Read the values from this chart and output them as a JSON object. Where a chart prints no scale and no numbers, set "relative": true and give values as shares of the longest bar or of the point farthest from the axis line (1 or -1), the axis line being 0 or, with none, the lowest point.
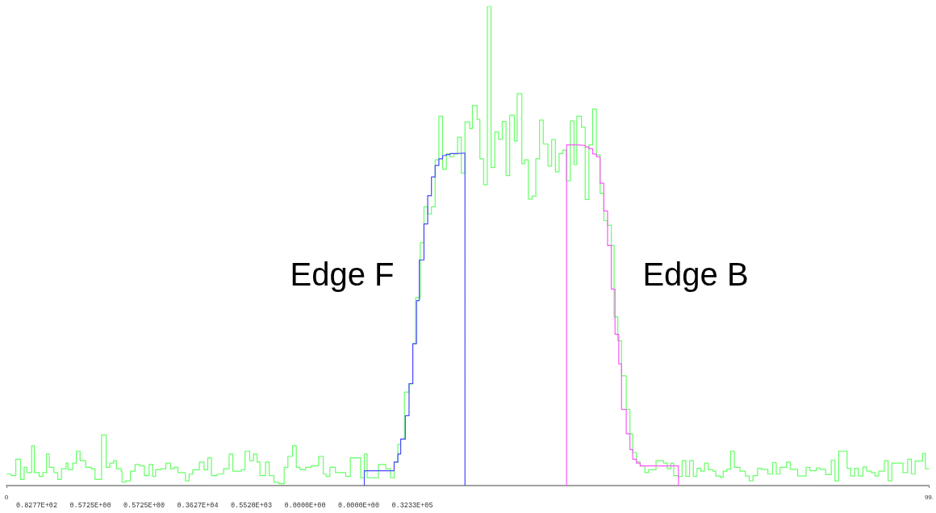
{
  "chart_data": {
    "type": "step",
    "relative": true,
    "tick_labels": "x",
    "xlim": [
      0,
      99
    ],
    "xticks": [
      0,
      {
        "value": 99,
        "label": "99."
      }
    ],
    "series": [
      {
        "color": "#66ff66",
        "x": [
          0.0,
          0.5,
          1.0,
          1.5,
          1.9,
          2.2,
          2.7,
          3.0,
          3.5,
          3.9,
          4.3,
          4.6,
          5.1,
          5.5,
          5.9,
          6.4,
          6.6,
          7.1,
          7.5,
          7.9,
          8.5,
          9.1,
          9.5,
          10.2,
          10.7,
          11.1,
          11.5,
          11.8,
          12.3,
          12.4,
          12.8,
          13.3,
          13.8,
          14.3,
          14.8,
          15.3,
          15.7,
          16.0,
          16.6,
          17.1,
          17.6,
          18.0,
          18.4,
          19.2,
          19.6,
          20.0,
          20.7,
          21.2,
          21.6,
          22.0,
          22.6,
          23.3,
          23.9,
          24.3,
          25.2,
          25.6,
          26.1,
          26.5,
          26.9,
          27.2,
          27.8,
          28.2,
          28.7,
          29.2,
          29.8,
          30.2,
          30.7,
          31.1,
          31.5,
          32.1,
          32.7,
          33.5,
          34.0,
          34.3,
          34.7,
          35.3,
          36.1,
          36.4,
          36.9,
          38.0,
          38.4,
          38.7,
          39.9,
          40.7,
          41.2,
          41.6,
          42.0,
          42.3,
          42.7,
          43.2,
          43.6,
          43.9,
          44.4,
          44.8,
          45.2,
          45.6,
          46.0,
          46.4,
          46.8,
          47.2,
          47.6,
          48.0,
          48.4,
          48.8,
          49.2,
          49.7,
          50.0,
          50.5,
          50.8,
          51.2,
          51.6,
          52.0,
          52.4,
          52.8,
          53.2,
          53.6,
          54.0,
          54.5,
          54.8,
          55.3,
          55.6,
          56.0,
          56.4,
          56.8,
          57.2,
          57.6,
          58.1,
          58.5,
          58.9,
          59.3,
          59.7,
          60.1,
          60.5,
          60.9,
          61.2,
          61.7,
          62.1,
          62.5,
          62.9,
          63.3,
          63.7,
          64.1,
          64.5,
          64.9,
          65.2,
          65.6,
          66.0,
          66.5,
          66.9,
          67.2,
          67.6,
          68.0,
          68.5,
          68.9,
          69.7,
          70.5,
          70.9,
          71.3,
          71.6,
          72.1,
          72.5,
          72.9,
          73.3,
          73.7,
          74.1,
          74.5,
          74.9,
          75.3,
          75.8,
          76.1,
          76.6,
          76.9,
          77.3,
          77.7,
          78.1,
          78.7,
          79.3,
          79.7,
          80.1,
          80.6,
          81.0,
          81.7,
          82.2,
          82.6,
          83.0,
          83.7,
          84.1,
          84.9,
          85.8,
          86.2,
          86.9,
          87.3,
          87.9,
          88.5,
          88.9,
          89.3,
          90.2,
          90.6,
          91.0,
          91.4,
          91.9,
          92.3,
          92.8,
          93.2,
          93.6,
          94.2,
          94.6,
          95.0,
          96.2,
          96.7,
          97.1,
          97.5,
          98.3,
          98.6,
          99.0
        ],
        "values": [
          0.024,
          0.021,
          0.055,
          0.013,
          0.038,
          0.027,
          0.083,
          0.027,
          0.019,
          0.027,
          0.066,
          0.038,
          0.027,
          0.013,
          0.035,
          0.047,
          0.033,
          0.047,
          0.072,
          0.052,
          0.038,
          0.035,
          0.013,
          0.106,
          0.038,
          0.047,
          0.052,
          0.035,
          0.03,
          0.007,
          0.01,
          0.03,
          0.044,
          0.041,
          0.021,
          0.044,
          0.019,
          0.033,
          0.035,
          0.047,
          0.035,
          0.038,
          0.027,
          0.01,
          0.024,
          0.033,
          0.049,
          0.033,
          0.058,
          0.021,
          0.024,
          0.035,
          0.066,
          0.03,
          0.033,
          0.072,
          0.052,
          0.066,
          0.049,
          0.021,
          0.049,
          0.021,
          0.007,
          0.004,
          0.038,
          0.061,
          0.083,
          0.038,
          0.033,
          0.038,
          0.041,
          0.061,
          0.024,
          0.019,
          0.038,
          0.027,
          0.027,
          0.019,
          0.058,
          0.016,
          0.066,
          0.016,
          0.044,
          0.035,
          0.016,
          0.049,
          0.086,
          0.097,
          0.195,
          0.212,
          0.296,
          0.392,
          0.507,
          0.582,
          0.567,
          0.582,
          0.68,
          0.771,
          0.66,
          0.692,
          0.686,
          0.692,
          0.727,
          0.652,
          0.759,
          0.745,
          0.793,
          0.764,
          0.682,
          0.628,
          1.0,
          0.664,
          0.738,
          0.723,
          0.76,
          0.647,
          0.773,
          0.719,
          0.818,
          0.672,
          0.68,
          0.598,
          0.604,
          0.682,
          0.763,
          0.713,
          0.667,
          0.722,
          0.655,
          0.693,
          0.7,
          0.636,
          0.761,
          0.67,
          0.771,
          0.748,
          0.597,
          0.711,
          0.786,
          0.69,
          0.61,
          0.553,
          0.543,
          0.501,
          0.352,
          0.302,
          0.229,
          0.159,
          0.108,
          0.069,
          0.049,
          0.041,
          0.027,
          0.033,
          0.052,
          0.047,
          0.035,
          0.047,
          0.021,
          0.019,
          0.052,
          0.019,
          0.052,
          0.019,
          0.036,
          0.03,
          0.047,
          0.033,
          0.03,
          0.02,
          0.017,
          0.03,
          0.034,
          0.072,
          0.038,
          0.03,
          0.02,
          0.01,
          0.021,
          0.036,
          0.034,
          0.024,
          0.048,
          0.024,
          0.038,
          0.049,
          0.034,
          0.02,
          0.038,
          0.031,
          0.037,
          0.034,
          0.023,
          0.053,
          0.01,
          0.072,
          0.036,
          0.02,
          0.036,
          0.02,
          0.039,
          0.03,
          0.027,
          0.02,
          0.03,
          0.052,
          0.01,
          0.047,
          0.027,
          0.055,
          0.024,
          0.051,
          0.067,
          0.035,
          0.035
        ]
      },
      {
        "color": "#4848ff",
        "x": [
          38.4,
          38.4,
          41.6,
          42.0,
          42.3,
          42.8,
          43.2,
          43.6,
          44.0,
          44.3,
          44.8,
          45.2,
          45.6,
          46.0,
          46.4,
          46.8,
          47.2,
          47.6,
          48.3,
          49.2
        ],
        "values": [
          0,
          0.031,
          0.049,
          0.066,
          0.097,
          0.146,
          0.213,
          0.296,
          0.386,
          0.471,
          0.546,
          0.605,
          0.644,
          0.668,
          0.682,
          0.689,
          0.691,
          0.693,
          0.694,
          0
        ]
      },
      {
        "color": "#ff55ff",
        "x": [
          60.1,
          60.1,
          61.2,
          62.1,
          62.5,
          62.9,
          63.3,
          63.7,
          64.1,
          64.5,
          64.9,
          65.3,
          65.7,
          66.0,
          66.5,
          66.9,
          67.2,
          67.6,
          68.0,
          72.1
        ],
        "values": [
          0,
          0.711,
          0.71,
          0.707,
          0.703,
          0.692,
          0.686,
          0.631,
          0.573,
          0.501,
          0.41,
          0.316,
          0.254,
          0.159,
          0.108,
          0.075,
          0.055,
          0.047,
          0.041,
          0
        ]
      }
    ],
    "annotations": [
      "Edge F",
      "Edge B",
      "0.8277E+02",
      "0.5725E+00",
      "0.5725E+00",
      "0.3627E+04",
      "0.5520E+03",
      "0.0000E+00",
      "0.0000E+00",
      "0.3233E+05"
    ]
  }
}
